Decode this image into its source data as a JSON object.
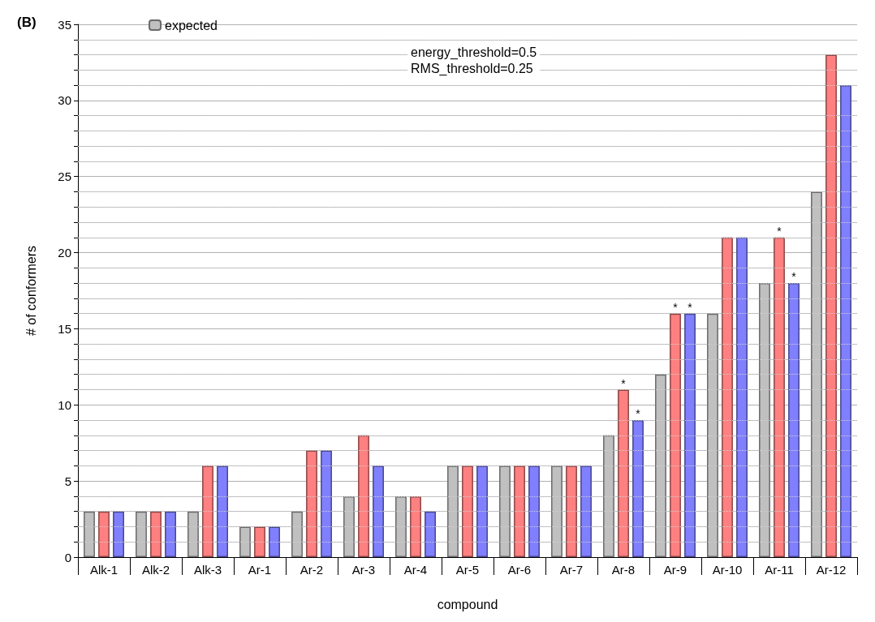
{
  "chart_data": {
    "type": "bar",
    "title": "(B)",
    "xlabel": "compound",
    "ylabel": "# of conformers",
    "categories": [
      "Alk-1",
      "Alk-2",
      "Alk-3",
      "Ar-1",
      "Ar-2",
      "Ar-3",
      "Ar-4",
      "Ar-5",
      "Ar-6",
      "Ar-7",
      "Ar-8",
      "Ar-9",
      "Ar-10",
      "Ar-11",
      "Ar-12"
    ],
    "series": [
      {
        "name": "expected",
        "color": "#c0c0c0",
        "values": [
          3,
          3,
          3,
          2,
          3,
          4,
          4,
          6,
          6,
          6,
          8,
          12,
          16,
          18,
          24
        ]
      },
      {
        "color": "#ff8080",
        "values": [
          3,
          3,
          6,
          2,
          7,
          8,
          4,
          6,
          6,
          6,
          11,
          16,
          21,
          21,
          33
        ],
        "value_labels": [
          null,
          null,
          null,
          null,
          null,
          null,
          null,
          null,
          null,
          null,
          "*",
          "*",
          null,
          "*",
          null
        ]
      },
      {
        "color": "#8080ff",
        "values": [
          3,
          3,
          6,
          2,
          7,
          6,
          3,
          6,
          6,
          6,
          9,
          16,
          21,
          18,
          31
        ],
        "value_labels": [
          null,
          null,
          null,
          null,
          null,
          null,
          null,
          null,
          null,
          null,
          "*",
          "*",
          null,
          "*",
          null
        ]
      }
    ],
    "ylim": [
      0,
      35
    ],
    "yticks": [
      0,
      {
        "value": 1,
        "label": null
      },
      {
        "value": 2,
        "label": null
      },
      {
        "value": 3,
        "label": null
      },
      {
        "value": 4,
        "label": null
      },
      5,
      {
        "value": 6,
        "label": null
      },
      {
        "value": 7,
        "label": null
      },
      {
        "value": 8,
        "label": null
      },
      {
        "value": 9,
        "label": null
      },
      10,
      {
        "value": 11,
        "label": null
      },
      {
        "value": 12,
        "label": null
      },
      {
        "value": 13,
        "label": null
      },
      {
        "value": 14,
        "label": null
      },
      15,
      {
        "value": 16,
        "label": null
      },
      {
        "value": 17,
        "label": null
      },
      {
        "value": 18,
        "label": null
      },
      {
        "value": 19,
        "label": null
      },
      20,
      {
        "value": 21,
        "label": null
      },
      {
        "value": 22,
        "label": null
      },
      {
        "value": 23,
        "label": null
      },
      {
        "value": 24,
        "label": null
      },
      25,
      {
        "value": 26,
        "label": null
      },
      {
        "value": 27,
        "label": null
      },
      {
        "value": 28,
        "label": null
      },
      {
        "value": 29,
        "label": null
      },
      30,
      {
        "value": 31,
        "label": null
      },
      {
        "value": 32,
        "label": null
      },
      {
        "value": 33,
        "label": null
      },
      {
        "value": 34,
        "label": null
      },
      35
    ],
    "grid": "y",
    "legend": "top left",
    "annotations": [
      "energy_threshold=0.5\nRMS_threshold=0.25"
    ]
  }
}
